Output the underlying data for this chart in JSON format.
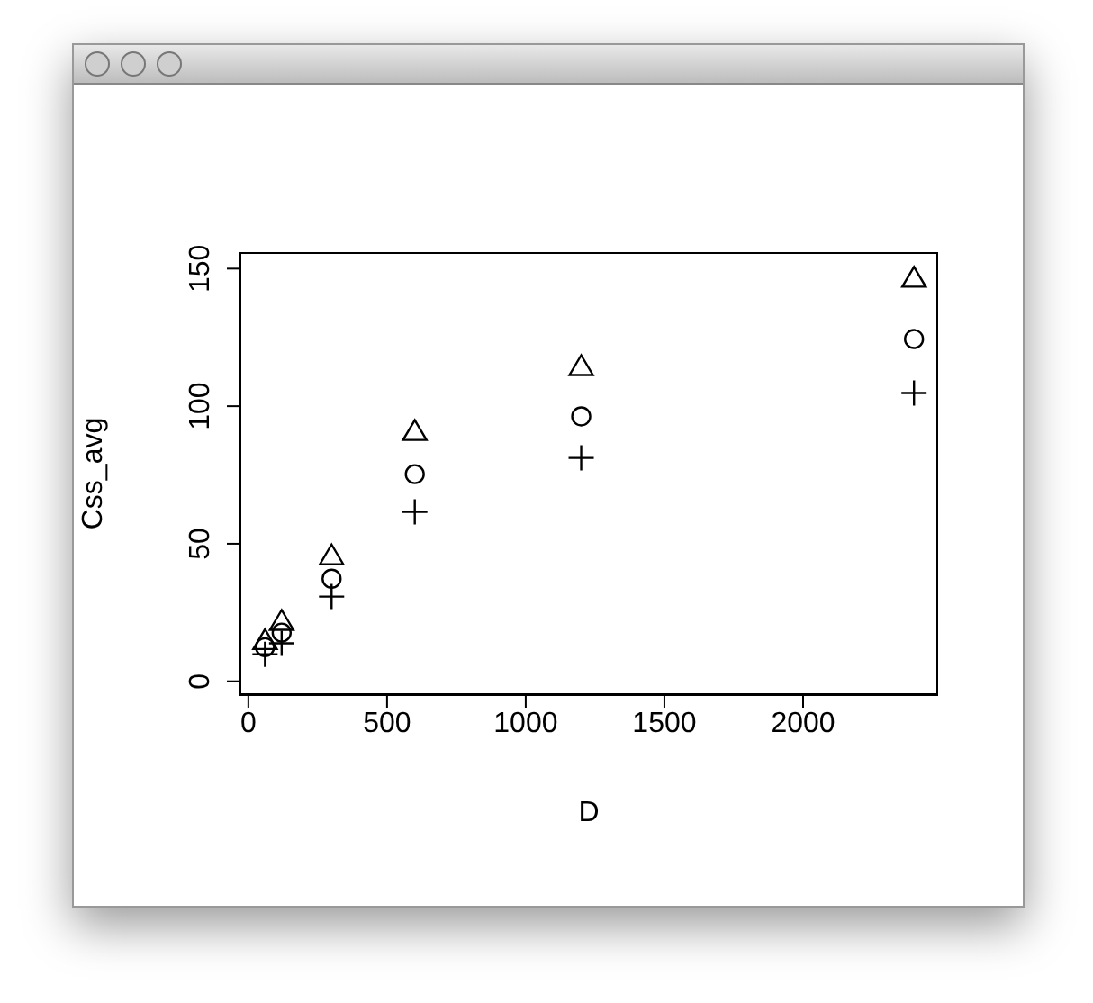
{
  "chart_data": {
    "type": "scatter",
    "xlabel": "D",
    "ylabel": "Css_avg",
    "xlim": [
      -32,
      2487
    ],
    "ylim": [
      -5,
      156
    ],
    "xticks": [
      0,
      500,
      1000,
      1500,
      2000
    ],
    "yticks": [
      0,
      50,
      100,
      150
    ],
    "grid": false,
    "legend": false,
    "x": [
      60,
      120,
      300,
      600,
      1200,
      2400
    ],
    "series": [
      {
        "color": "#000000",
        "marker": "triangle",
        "values": [
          15,
          22,
          45.8,
          91,
          114.6,
          146.7
        ]
      },
      {
        "color": "#000000",
        "marker": "circle",
        "values": [
          12.4,
          17.7,
          37.3,
          75.3,
          96.3,
          124.4
        ]
      },
      {
        "color": "#000000",
        "marker": "cross",
        "values": [
          9.8,
          13.8,
          30.8,
          61.6,
          81.2,
          104.8
        ]
      }
    ]
  }
}
